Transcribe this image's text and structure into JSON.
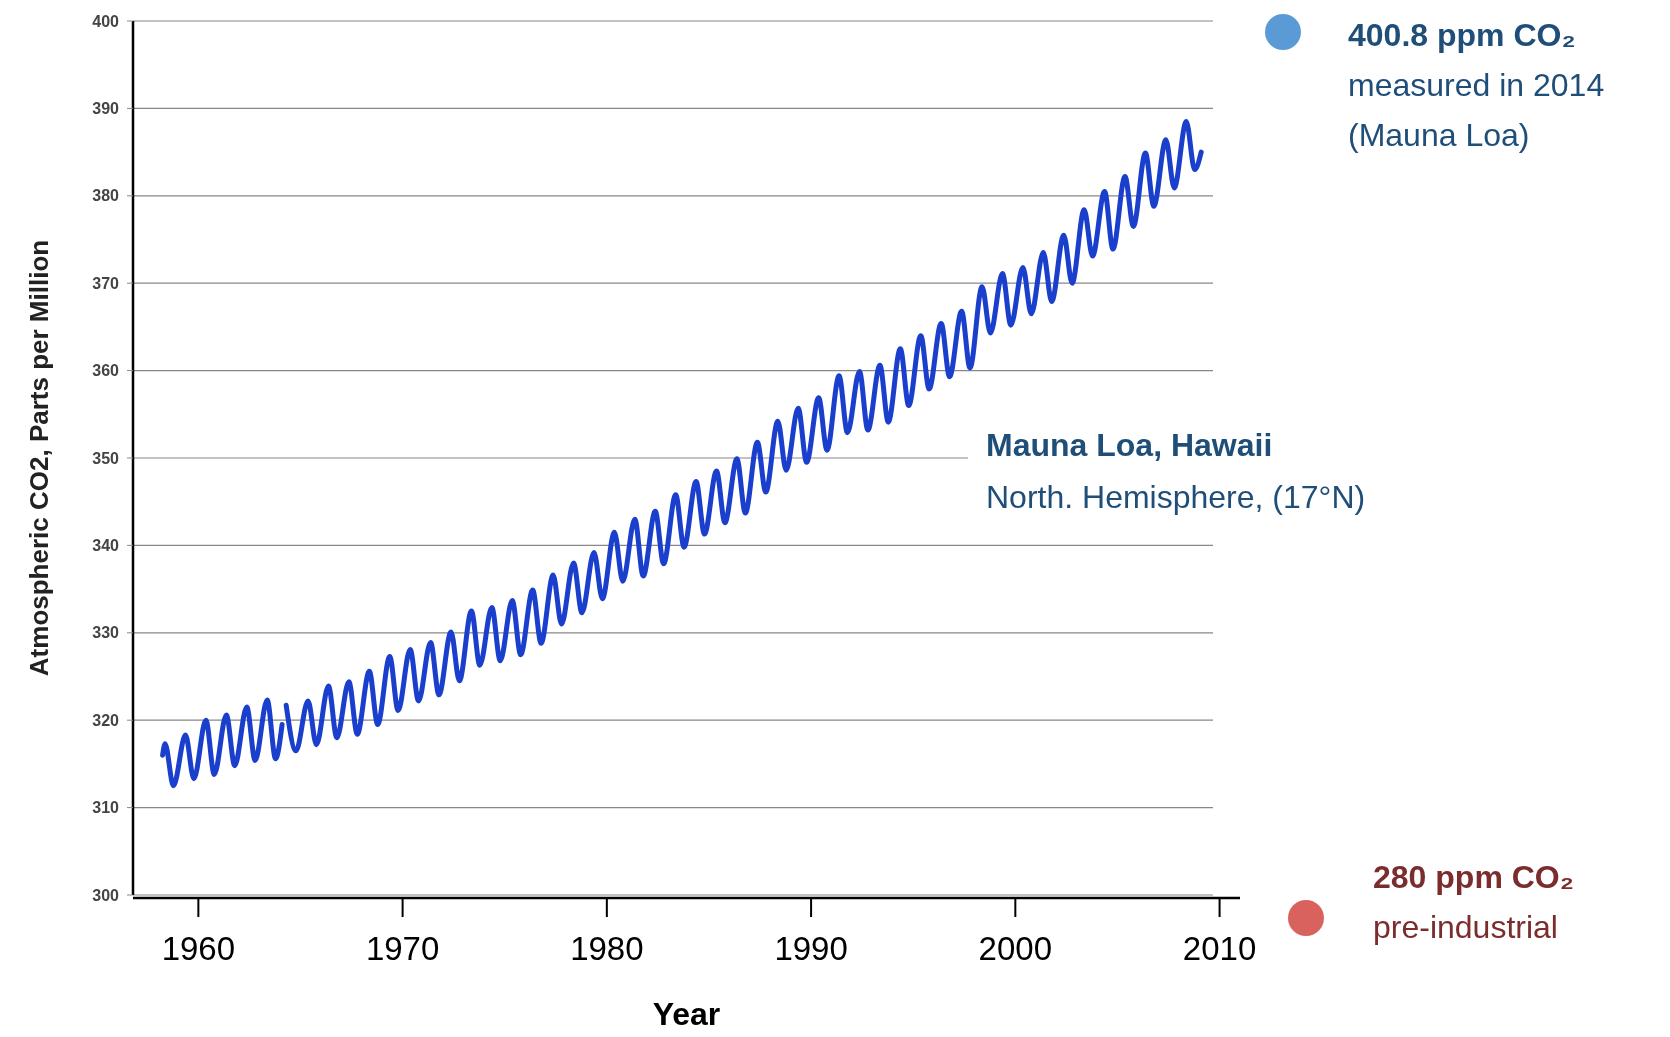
{
  "chart_data": {
    "type": "line",
    "xlabel": "Year",
    "ylabel": "Atmospheric CO2, Parts per Million",
    "xlim": [
      1956.8,
      2011
    ],
    "xticks": [
      1960,
      1970,
      1980,
      1990,
      2000,
      2010
    ],
    "ylim": [
      300,
      400
    ],
    "yticks": [
      300,
      310,
      320,
      330,
      340,
      350,
      360,
      370,
      380,
      390,
      400
    ],
    "grid": "y",
    "line_style": "solid",
    "annotations": [
      "400.8 ppm CO₂",
      "measured in 2014",
      "(Mauna Loa)",
      "Mauna Loa, Hawaii",
      "North. Hemisphere, (17°N)",
      "280 ppm CO₂",
      "pre-industrial"
    ],
    "series": [
      {
        "color": "#1a3fcc",
        "x": [
          1958.25,
          1958.37,
          1958.78,
          1959.37,
          1959.78,
          1960.37,
          1960.78,
          1961.37,
          1961.78,
          1962.37,
          1962.78,
          1963.37,
          1963.78,
          1964.1,
          1964.2,
          1964.3,
          1964.78,
          1965.37,
          1965.78,
          1966.37,
          1966.78,
          1967.37,
          1967.78,
          1968.37,
          1968.78,
          1969.37,
          1969.78,
          1970.37,
          1970.78,
          1971.37,
          1971.78,
          1972.37,
          1972.78,
          1973.37,
          1973.78,
          1974.37,
          1974.78,
          1975.37,
          1975.78,
          1976.37,
          1976.78,
          1977.37,
          1977.78,
          1978.37,
          1978.78,
          1979.37,
          1979.78,
          1980.37,
          1980.78,
          1981.37,
          1981.78,
          1982.37,
          1982.78,
          1983.37,
          1983.78,
          1984.37,
          1984.78,
          1985.37,
          1985.78,
          1986.37,
          1986.78,
          1987.37,
          1987.78,
          1988.37,
          1988.78,
          1989.37,
          1989.78,
          1990.37,
          1990.78,
          1991.37,
          1991.78,
          1992.37,
          1992.78,
          1993.37,
          1993.78,
          1994.37,
          1994.78,
          1995.37,
          1995.78,
          1996.37,
          1996.78,
          1997.37,
          1997.78,
          1998.37,
          1998.78,
          1999.37,
          1999.78,
          2000.37,
          2000.78,
          2001.37,
          2001.78,
          2002.37,
          2002.78,
          2003.37,
          2003.78,
          2004.37,
          2004.78,
          2005.37,
          2005.78,
          2006.37,
          2006.78,
          2007.37,
          2007.78,
          2008.37,
          2008.78,
          2009.1
        ],
        "values": [
          316.0,
          317.3,
          312.5,
          318.3,
          313.3,
          320.0,
          313.8,
          320.6,
          314.8,
          321.5,
          315.4,
          322.3,
          315.6,
          319.5,
          null,
          321.7,
          316.5,
          322.2,
          317.2,
          323.9,
          318.0,
          324.4,
          318.4,
          325.6,
          319.5,
          327.3,
          321.1,
          328.1,
          322.2,
          328.9,
          322.9,
          330.1,
          324.5,
          332.5,
          326.3,
          332.9,
          326.8,
          333.7,
          327.5,
          334.9,
          328.8,
          336.6,
          331.0,
          338.0,
          332.3,
          339.2,
          333.9,
          341.5,
          335.9,
          343.0,
          336.5,
          343.9,
          337.9,
          345.8,
          339.8,
          347.3,
          341.3,
          348.5,
          342.6,
          349.9,
          343.7,
          351.8,
          346.1,
          354.2,
          348.6,
          355.7,
          349.5,
          356.9,
          350.9,
          359.4,
          352.9,
          359.9,
          353.2,
          360.6,
          354.1,
          362.5,
          356.0,
          364.0,
          357.9,
          365.4,
          359.3,
          366.8,
          360.3,
          369.6,
          364.3,
          371.1,
          365.2,
          371.8,
          366.5,
          373.5,
          367.9,
          375.5,
          370.0,
          378.4,
          373.1,
          380.5,
          373.9,
          382.2,
          376.5,
          384.9,
          378.8,
          386.4,
          380.9,
          388.5,
          383.0,
          385.0
        ]
      }
    ]
  }
}
